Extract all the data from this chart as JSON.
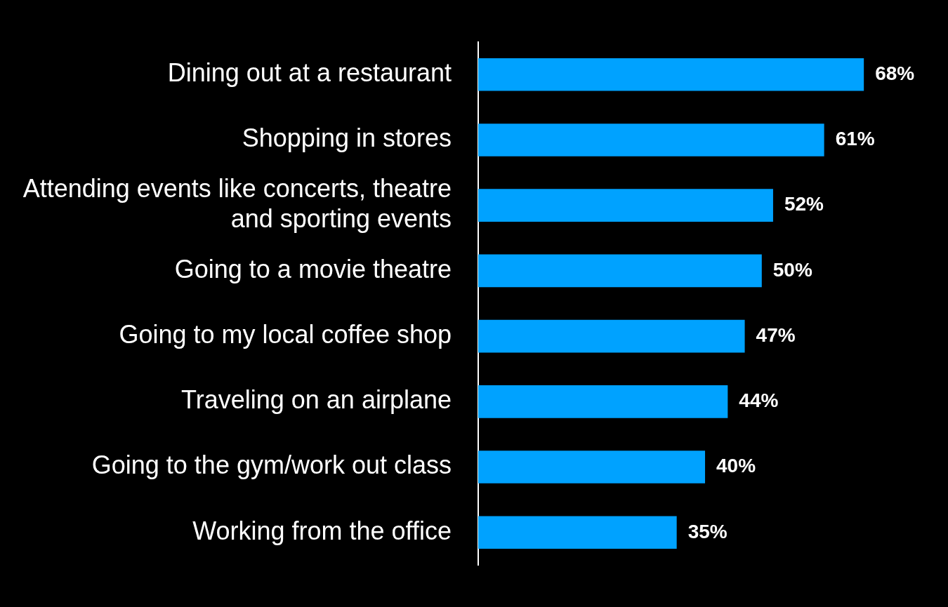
{
  "chart_data": {
    "type": "bar",
    "orientation": "horizontal",
    "categories": [
      "Dining out at a restaurant",
      "Shopping in stores",
      "Attending events like concerts, theatre and sporting events",
      "Going to a movie theatre",
      "Going to my local coffee shop",
      "Traveling on an airplane",
      "Going to the gym/work out class",
      "Working from the office"
    ],
    "values": [
      68,
      61,
      52,
      50,
      47,
      44,
      40,
      35
    ],
    "value_labels": [
      "68%",
      "61%",
      "52%",
      "50%",
      "47%",
      "44%",
      "40%",
      "35%"
    ],
    "color": "#00a2ff"
  }
}
